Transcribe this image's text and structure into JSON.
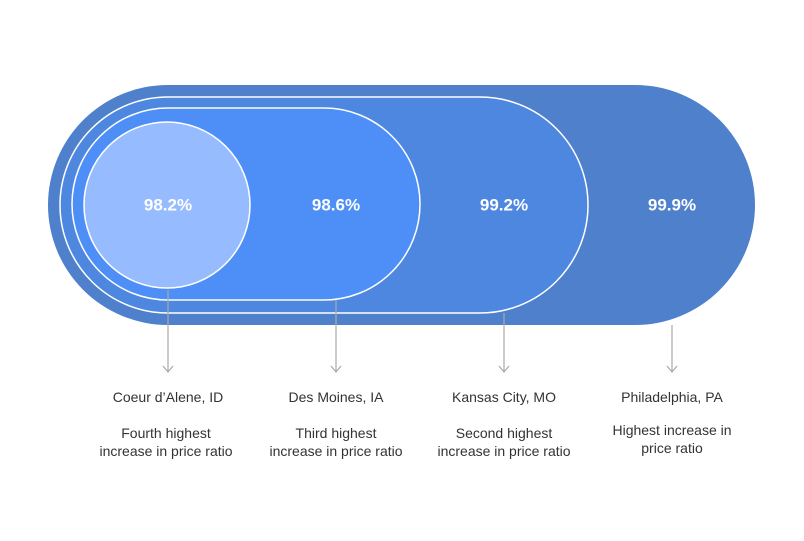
{
  "items": [
    {
      "value": "98.2%",
      "city": "Coeur d’Alene, ID",
      "description": "Fourth highest increase in price ratio"
    },
    {
      "value": "98.6%",
      "city": "Des Moines, IA",
      "description": "Third highest increase in price ratio"
    },
    {
      "value": "99.2%",
      "city": "Kansas City, MO",
      "description": "Second highest increase in price ratio"
    },
    {
      "value": "99.9%",
      "city": "Philadelphia, PA",
      "description": "Highest increase in price ratio"
    }
  ]
}
